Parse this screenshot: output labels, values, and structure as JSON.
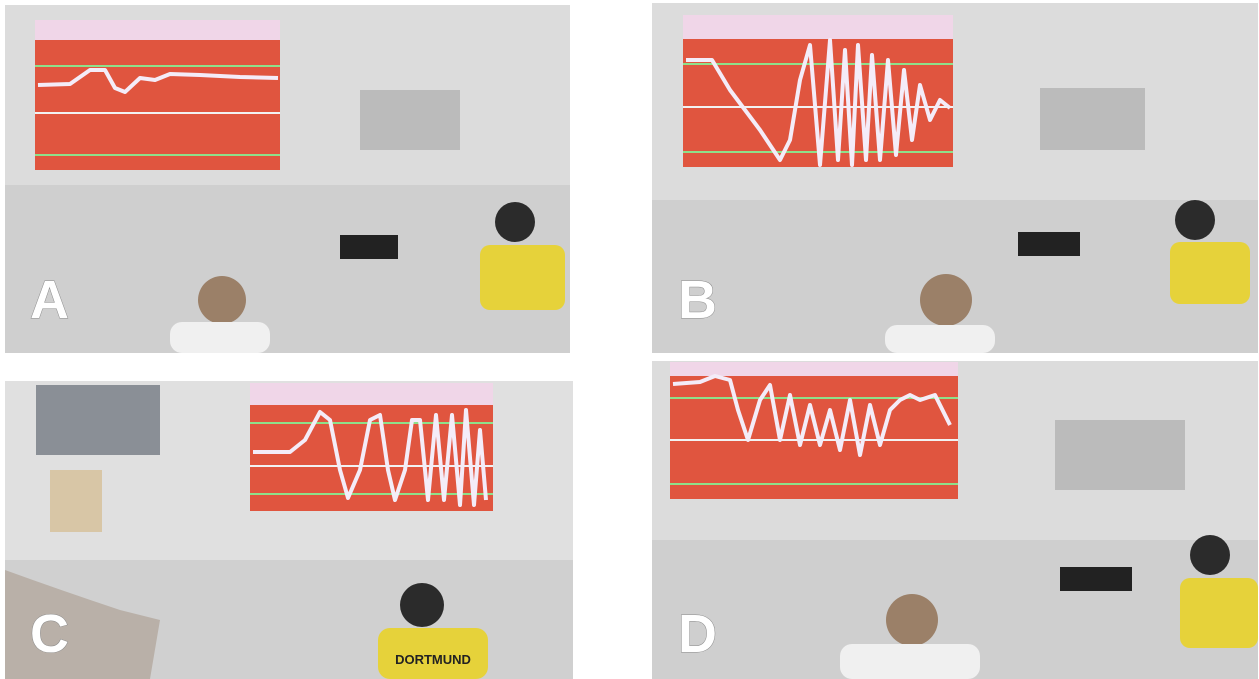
{
  "panels": [
    {
      "label": "A"
    },
    {
      "label": "B"
    },
    {
      "label": "C",
      "shirt_text": "DORTMUND"
    },
    {
      "label": "D"
    }
  ]
}
